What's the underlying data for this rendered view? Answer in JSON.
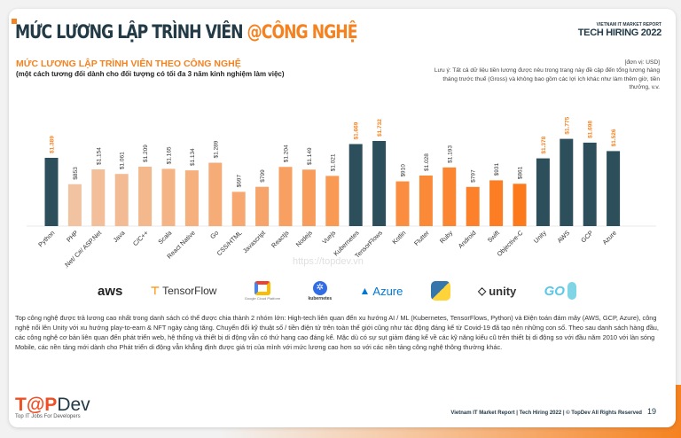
{
  "header": {
    "title_main": "MỨC LƯƠNG LẬP TRÌNH VIÊN ",
    "title_accent": "@CÔNG NGHỆ",
    "brand_small": "VIETNAM IT MARKET REPORT",
    "brand_big": "TECH HIRING 2022"
  },
  "section": {
    "title": "MỨC LƯƠNG LẬP TRÌNH VIÊN THEO CÔNG NGHỆ",
    "subtitle": "(một cách tương đối dành cho đối tượng có tối đa 3 năm kinh nghiệm làm việc)",
    "unit": "[đơn vị: USD]",
    "note": "Lưu ý: Tất cả dữ liệu tiền lương được nêu trong trang này đề cập đến tổng lương hàng tháng trước thuế (Gross) và không bao gồm các lợi ích khác như làm thêm giờ, tiền thưởng, v.v."
  },
  "chart_data": {
    "type": "bar",
    "categories": [
      "Python",
      "PHP",
      ".Net/ C#/ ASP.Net",
      "Java",
      "C/C++",
      "Scala",
      "React Native",
      "Go",
      "CSS/HTML",
      "Javascript",
      "Reactjs",
      "Nodejs",
      "Vuejs",
      "Kubernetes",
      "TensorFlows",
      "Kotlin",
      "Flutter",
      "Ruby",
      "Android",
      "Swift",
      "Objective-C",
      "Unity",
      "AWS",
      "GCP",
      "Azure"
    ],
    "values": [
      1389,
      853,
      1154,
      1061,
      1209,
      1165,
      1134,
      1289,
      697,
      799,
      1204,
      1149,
      1021,
      1669,
      1732,
      910,
      1028,
      1193,
      797,
      931,
      861,
      1378,
      1775,
      1698,
      1526
    ],
    "labels": [
      "$1.389",
      "$853",
      "$1.154",
      "$1.061",
      "$1.209",
      "$1.165",
      "$1.134",
      "$1.289",
      "$697",
      "$799",
      "$1.204",
      "$1.149",
      "$1.021",
      "$1.669",
      "$1.732",
      "$910",
      "$1.028",
      "$1.193",
      "$797",
      "$931",
      "$861",
      "$1.378",
      "$1.775",
      "$1.698",
      "$1.526"
    ],
    "highlighted": [
      "Python",
      "Kubernetes",
      "TensorFlows",
      "Unity",
      "AWS",
      "GCP",
      "Azure"
    ],
    "colors": {
      "highlight": "#2d4e5b",
      "highlight_label": "#f58220",
      "gradient_start": "#f1c7a8",
      "gradient_end": "#ff6a00"
    },
    "watermark": "https://topdev.vn"
  },
  "logos": [
    "aws",
    "TensorFlow",
    "Google Cloud Platform",
    "kubernetes",
    "Azure",
    "python",
    "unity",
    "GO"
  ],
  "paragraph": "Top công nghệ được trả lương cao nhất trong danh sách có thể được chia thành 2 nhóm lớn: High-tech liên quan đến xu hướng AI / ML (Kubernetes, TensorFlows, Python) và Điện toán đám mây (AWS, GCP, Azure), công nghệ nổi lên Unity với xu hướng play-to-earn & NFT ngày càng tăng. Chuyển đổi kỹ thuật số / tiền điện tử trên toàn thế giới cũng như tác động đáng kể từ Covid-19 đã tạo nên những con số. Theo sau danh sách hàng đầu, các công nghệ cơ bản liên quan đến phát triển web, hệ thống và thiết bị di động vẫn có thứ hạng cao đáng kể. Mặc dù có sự sụt giảm đáng kể về các kỹ năng kiểu cũ trên thiết bị di động so với đầu năm 2010 với làn sóng Mobile, các nền tảng mới dành cho Phát triển di động vẫn khẳng định được giá trị của mình với mức lương cao hơn so với các nền tảng công nghệ thông thường khác.",
  "footer": {
    "logo_a": "T@P",
    "logo_b": "Dev",
    "tagline": "Top IT Jobs For Developers",
    "text": "Vietnam IT Market Report | Tech Hiring 2022 | © TopDev All Rights Reserved",
    "page": "19"
  }
}
